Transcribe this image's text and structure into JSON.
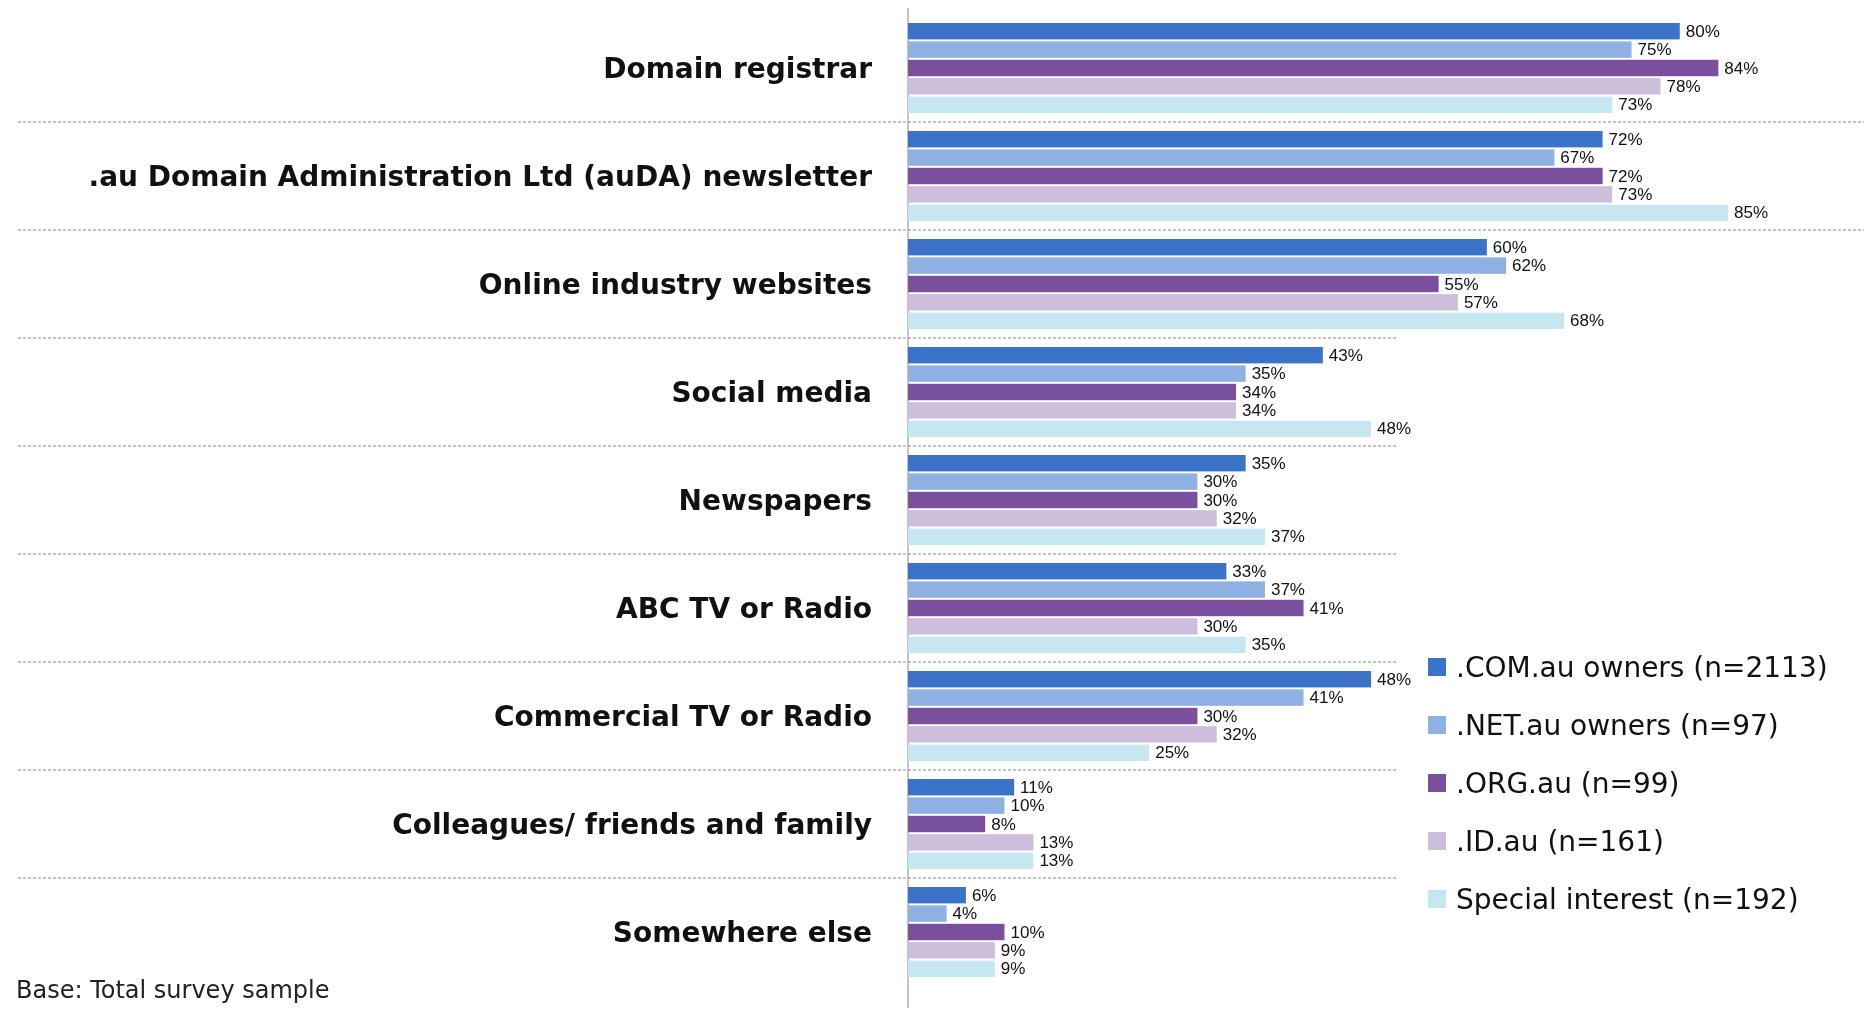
{
  "chart_data": {
    "type": "bar",
    "orientation": "horizontal",
    "legend": "right",
    "categories": [
      "Domain registrar",
      ".au Domain Administration Ltd (auDA) newsletter",
      "Online industry websites",
      "Social media",
      "Newspapers",
      "ABC TV or Radio",
      "Commercial TV or Radio",
      "Colleagues/ friends and family",
      "Somewhere else"
    ],
    "series": [
      {
        "name": ".COM.au owners (n=2113)",
        "color": "#3b73c8",
        "values": [
          80,
          72,
          60,
          43,
          35,
          33,
          48,
          11,
          6
        ],
        "value_labels": [
          "80%",
          "72%",
          "60%",
          "43%",
          "35%",
          "33%",
          "48%",
          "11%",
          "6%"
        ]
      },
      {
        "name": ".NET.au owners (n=97)",
        "color": "#8fb0e3",
        "values": [
          75,
          67,
          62,
          35,
          30,
          37,
          41,
          10,
          4
        ],
        "value_labels": [
          "75%",
          "67%",
          "62%",
          "35%",
          "30%",
          "37%",
          "41%",
          "10%",
          "4%"
        ]
      },
      {
        "name": ".ORG.au (n=99)",
        "color": "#7a4f9e",
        "values": [
          84,
          72,
          55,
          34,
          30,
          41,
          30,
          8,
          10
        ],
        "value_labels": [
          "84%",
          "72%",
          "55%",
          "34%",
          "30%",
          "41%",
          "30%",
          "8%",
          "10%"
        ]
      },
      {
        "name": ".ID.au (n=161)",
        "color": "#cdbedc",
        "values": [
          78,
          73,
          57,
          34,
          32,
          30,
          32,
          13,
          9
        ],
        "value_labels": [
          "78%",
          "73%",
          "57%",
          "34%",
          "32%",
          "30%",
          "32%",
          "13%",
          "9%"
        ]
      },
      {
        "name": "Special interest (n=192)",
        "color": "#c6e6f0",
        "values": [
          73,
          85,
          68,
          48,
          37,
          35,
          25,
          13,
          9
        ],
        "value_labels": [
          "73%",
          "85%",
          "68%",
          "48%",
          "37%",
          "35%",
          "25%",
          "13%",
          "9%"
        ]
      }
    ],
    "annotations": [
      "Base: Total survey sample"
    ]
  }
}
